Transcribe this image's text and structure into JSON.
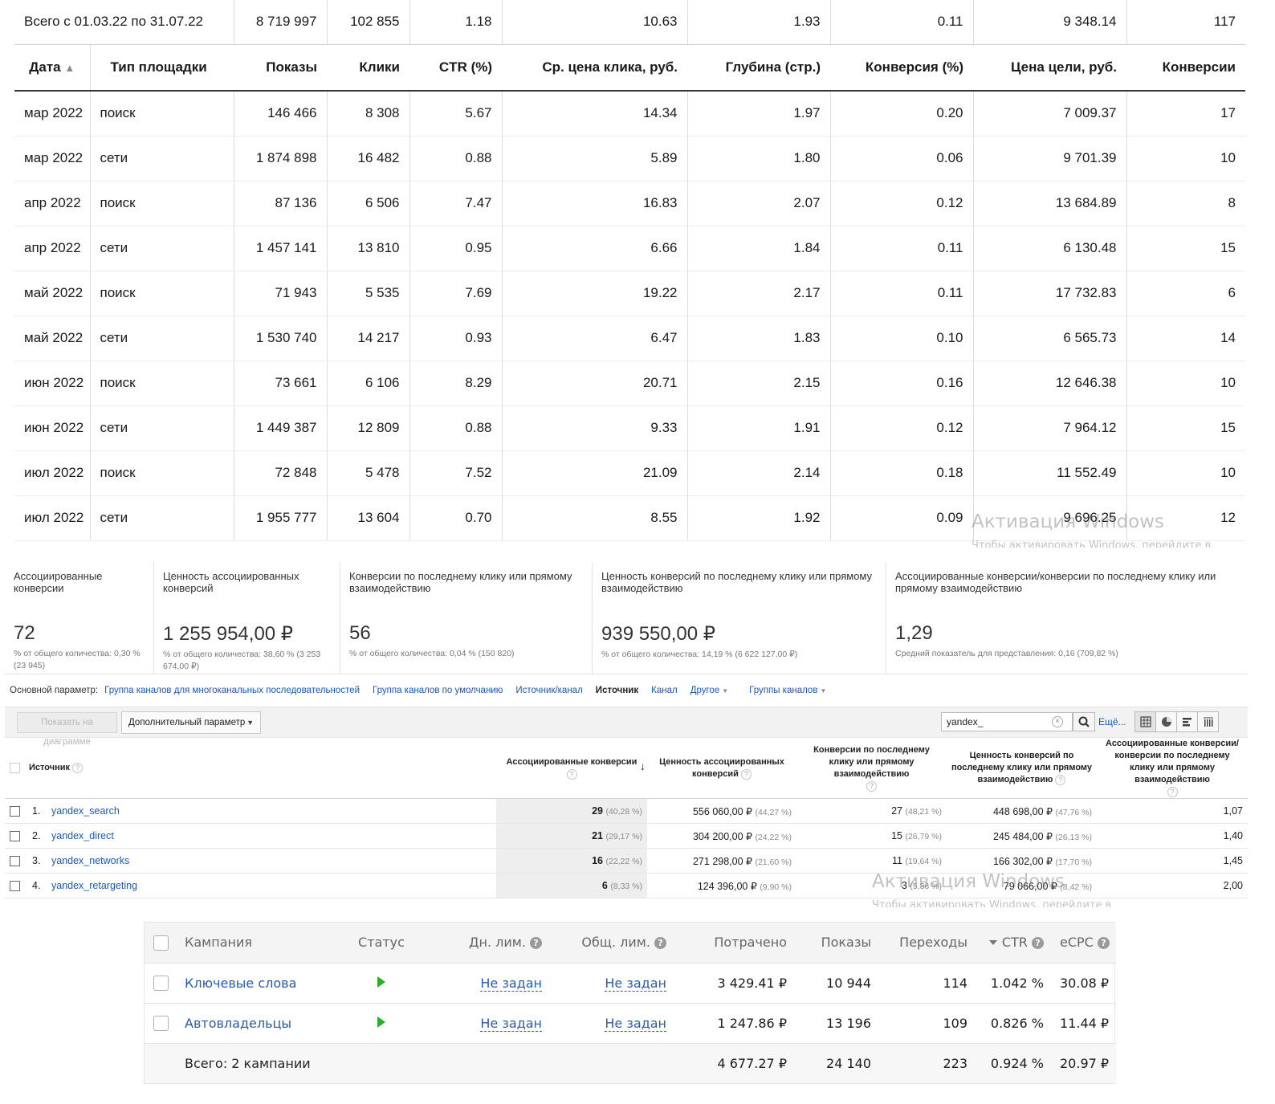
{
  "metrika": {
    "total": {
      "label": "Всего с 01.03.22 по 31.07.22",
      "shows": "8 719 997",
      "clicks": "102 855",
      "ctr": "1.18",
      "cpc": "10.63",
      "depth": "1.93",
      "conv_rate": "0.11",
      "goal_price": "9 348.14",
      "conversions": "117"
    },
    "headers": {
      "date": "Дата",
      "date_sort": "▲",
      "type": "Тип площадки",
      "shows": "Показы",
      "clicks": "Клики",
      "ctr": "CTR (%)",
      "cpc": "Ср. цена клика, руб.",
      "depth": "Глубина (стр.)",
      "conv_rate": "Конверсия (%)",
      "goal_price": "Цена цели, руб.",
      "conversions": "Конверсии"
    },
    "rows": [
      {
        "date": "мар 2022",
        "type": "поиск",
        "shows": "146 466",
        "clicks": "8 308",
        "ctr": "5.67",
        "cpc": "14.34",
        "depth": "1.97",
        "conv_rate": "0.20",
        "goal_price": "7 009.37",
        "conversions": "17"
      },
      {
        "date": "мар 2022",
        "type": "сети",
        "shows": "1 874 898",
        "clicks": "16 482",
        "ctr": "0.88",
        "cpc": "5.89",
        "depth": "1.80",
        "conv_rate": "0.06",
        "goal_price": "9 701.39",
        "conversions": "10"
      },
      {
        "date": "апр 2022",
        "type": "поиск",
        "shows": "87 136",
        "clicks": "6 506",
        "ctr": "7.47",
        "cpc": "16.83",
        "depth": "2.07",
        "conv_rate": "0.12",
        "goal_price": "13 684.89",
        "conversions": "8"
      },
      {
        "date": "апр 2022",
        "type": "сети",
        "shows": "1 457 141",
        "clicks": "13 810",
        "ctr": "0.95",
        "cpc": "6.66",
        "depth": "1.84",
        "conv_rate": "0.11",
        "goal_price": "6 130.48",
        "conversions": "15"
      },
      {
        "date": "май 2022",
        "type": "поиск",
        "shows": "71 943",
        "clicks": "5 535",
        "ctr": "7.69",
        "cpc": "19.22",
        "depth": "2.17",
        "conv_rate": "0.11",
        "goal_price": "17 732.83",
        "conversions": "6"
      },
      {
        "date": "май 2022",
        "type": "сети",
        "shows": "1 530 740",
        "clicks": "14 217",
        "ctr": "0.93",
        "cpc": "6.47",
        "depth": "1.83",
        "conv_rate": "0.10",
        "goal_price": "6 565.73",
        "conversions": "14"
      },
      {
        "date": "июн 2022",
        "type": "поиск",
        "shows": "73 661",
        "clicks": "6 106",
        "ctr": "8.29",
        "cpc": "20.71",
        "depth": "2.15",
        "conv_rate": "0.16",
        "goal_price": "12 646.38",
        "conversions": "10"
      },
      {
        "date": "июн 2022",
        "type": "сети",
        "shows": "1 449 387",
        "clicks": "12 809",
        "ctr": "0.88",
        "cpc": "9.33",
        "depth": "1.91",
        "conv_rate": "0.12",
        "goal_price": "7 964.12",
        "conversions": "15"
      },
      {
        "date": "июл 2022",
        "type": "поиск",
        "shows": "72 848",
        "clicks": "5 478",
        "ctr": "7.52",
        "cpc": "21.09",
        "depth": "2.14",
        "conv_rate": "0.18",
        "goal_price": "11 552.49",
        "conversions": "10"
      },
      {
        "date": "июл 2022",
        "type": "сети",
        "shows": "1 955 777",
        "clicks": "13 604",
        "ctr": "0.70",
        "cpc": "8.55",
        "depth": "1.92",
        "conv_rate": "0.09",
        "goal_price": "9 696.25",
        "conversions": "12"
      }
    ]
  },
  "watermark": {
    "title": "Активация Windows",
    "subtitle": "Чтобы активировать Windows, перейдите в"
  },
  "ga": {
    "metrics": [
      {
        "label": "Ассоциированные конверсии",
        "value": "72",
        "sub": "% от общего количества: 0,30 % (23 945)"
      },
      {
        "label": "Ценность ассоциированных конверсий",
        "value": "1 255 954,00 ₽",
        "sub": "% от общего количества: 38,60 % (3 253 674,00 ₽)"
      },
      {
        "label": "Конверсии по последнему клику или прямому взаимодействию",
        "value": "56",
        "sub": "% от общего количества: 0,04 % (150 820)"
      },
      {
        "label": "Ценность конверсий по последнему клику или прямому взаимодействию",
        "value": "939 550,00 ₽",
        "sub": "% от общего количества: 14,19 % (6 622 127,00 ₽)"
      },
      {
        "label": "Ассоциированные конверсии/конверсии по последнему клику или прямому взаимодействию",
        "value": "1,29",
        "sub": "Средний показатель для представления: 0,16 (709,82 %)"
      }
    ],
    "params": {
      "label": "Основной параметр:",
      "links": [
        "Группа каналов для многоканальных последовательностей",
        "Группа каналов по умолчанию",
        "Источник/канал"
      ],
      "active": "Источник",
      "channel": "Канал",
      "other": "Другое",
      "groups": "Группы каналов"
    },
    "toolbar": {
      "show_chart": "Показать на диаграмме",
      "extra_param": "Дополнительный параметр",
      "search_value": "yandex_",
      "more": "Ещё..."
    },
    "table": {
      "headers": {
        "source": "Источник",
        "assoc": "Ассоциированные конверсии",
        "assoc_value": "Ценность ассоциированных конверсий",
        "last": "Конверсии по последнему клику или прямому взаимодействию",
        "last_value": "Ценность конверсий по последнему клику или прямому взаимодействию",
        "ratio": "Ассоциированные конверсии/ конверсии по последнему клику или прямому взаимодействию"
      },
      "rows": [
        {
          "n": "1.",
          "source": "yandex_search",
          "assoc": "29",
          "assoc_pct": "(40,28 %)",
          "assoc_value": "556 060,00 ₽",
          "assoc_value_pct": "(44,27 %)",
          "last": "27",
          "last_pct": "(48,21 %)",
          "last_value": "448 698,00 ₽",
          "last_value_pct": "(47,76 %)",
          "ratio": "1,07"
        },
        {
          "n": "2.",
          "source": "yandex_direct",
          "assoc": "21",
          "assoc_pct": "(29,17 %)",
          "assoc_value": "304 200,00 ₽",
          "assoc_value_pct": "(24,22 %)",
          "last": "15",
          "last_pct": "(26,79 %)",
          "last_value": "245 484,00 ₽",
          "last_value_pct": "(26,13 %)",
          "ratio": "1,40"
        },
        {
          "n": "3.",
          "source": "yandex_networks",
          "assoc": "16",
          "assoc_pct": "(22,22 %)",
          "assoc_value": "271 298,00 ₽",
          "assoc_value_pct": "(21,60 %)",
          "last": "11",
          "last_pct": "(19,64 %)",
          "last_value": "166 302,00 ₽",
          "last_value_pct": "(17,70 %)",
          "ratio": "1,45"
        },
        {
          "n": "4.",
          "source": "yandex_retargeting",
          "assoc": "6",
          "assoc_pct": "(8,33 %)",
          "assoc_value": "124 396,00 ₽",
          "assoc_value_pct": "(9,90 %)",
          "last": "3",
          "last_pct": "(5,36 %)",
          "last_value": "79 066,00 ₽",
          "last_value_pct": "(8,42 %)",
          "ratio": "2,00"
        }
      ]
    }
  },
  "direct": {
    "headers": {
      "campaign": "Кампания",
      "status": "Статус",
      "day_limit": "Дн. лим.",
      "total_limit": "Общ. лим.",
      "spent": "Потрачено",
      "shows": "Показы",
      "clicks": "Переходы",
      "ctr": "CTR",
      "ecpc": "eCPC"
    },
    "rows": [
      {
        "campaign": "Ключевые слова",
        "day_limit": "Не задан",
        "total_limit": "Не задан",
        "spent": "3 429.41 ₽",
        "shows": "10 944",
        "clicks": "114",
        "ctr": "1.042 %",
        "ecpc": "30.08 ₽"
      },
      {
        "campaign": "Автовладельцы",
        "day_limit": "Не задан",
        "total_limit": "Не задан",
        "spent": "1 247.86 ₽",
        "shows": "13 196",
        "clicks": "109",
        "ctr": "0.826 %",
        "ecpc": "11.44 ₽"
      }
    ],
    "total": {
      "label": "Всего: 2 кампании",
      "spent": "4 677.27 ₽",
      "shows": "24 140",
      "clicks": "223",
      "ctr": "0.924 %",
      "ecpc": "20.97 ₽"
    }
  }
}
